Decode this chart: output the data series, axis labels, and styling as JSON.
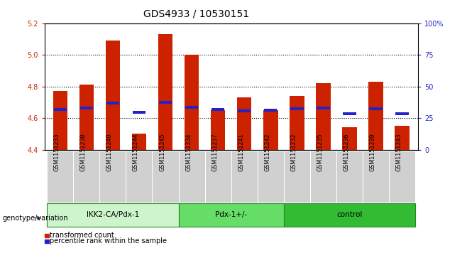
{
  "title": "GDS4933 / 10530151",
  "samples": [
    "GSM1151233",
    "GSM1151238",
    "GSM1151240",
    "GSM1151244",
    "GSM1151245",
    "GSM1151234",
    "GSM1151237",
    "GSM1151241",
    "GSM1151242",
    "GSM1151232",
    "GSM1151235",
    "GSM1151236",
    "GSM1151239",
    "GSM1151243"
  ],
  "red_values": [
    4.77,
    4.81,
    5.09,
    4.5,
    5.13,
    5.0,
    4.65,
    4.73,
    4.65,
    4.74,
    4.82,
    4.54,
    4.83,
    4.55
  ],
  "blue_values": [
    4.655,
    4.665,
    4.695,
    4.638,
    4.7,
    4.668,
    4.655,
    4.645,
    4.648,
    4.66,
    4.665,
    4.628,
    4.66,
    4.628
  ],
  "ymin": 4.4,
  "ymax": 5.2,
  "yticks": [
    4.4,
    4.6,
    4.8,
    5.0,
    5.2
  ],
  "right_yticks": [
    0,
    25,
    50,
    75,
    100
  ],
  "right_ylabels": [
    "0",
    "25",
    "50",
    "75",
    "100%"
  ],
  "groups": [
    {
      "label": "IKK2-CA/Pdx-1",
      "start": 0,
      "end": 5,
      "color": "#d8f5d8"
    },
    {
      "label": "Pdx-1+/-",
      "start": 5,
      "end": 9,
      "color": "#66dd66"
    },
    {
      "label": "control",
      "start": 9,
      "end": 14,
      "color": "#33bb33"
    }
  ],
  "legend_red": "transformed count",
  "legend_blue": "percentile rank within the sample",
  "bar_color": "#cc2200",
  "blue_color": "#2222cc",
  "bar_width": 0.55,
  "tick_area_color": "#d0d0d0",
  "title_fontsize": 10,
  "tick_fontsize": 7,
  "label_fontsize": 7.5
}
